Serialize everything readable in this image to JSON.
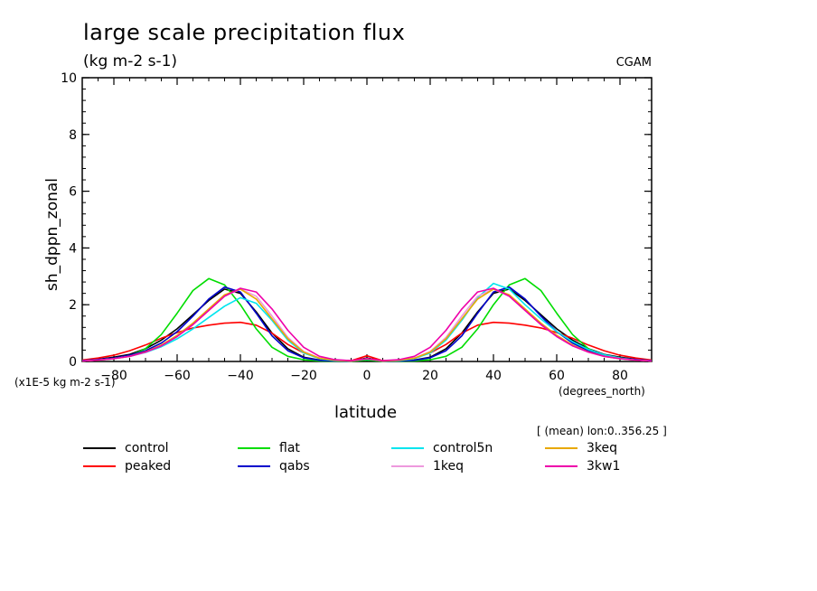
{
  "chart_data": {
    "type": "line",
    "title": "large scale precipitation flux",
    "units": "(kg m-2 s-1)",
    "source": "CGAM",
    "xlabel": "latitude",
    "xunits": "(degrees_north)",
    "ylabel": "sh_dppn_zonal",
    "scale_note": "(x1E-5 kg m-2 s-1)",
    "subset_note": "[ (mean) lon:0..356.25 ]",
    "xlim": [
      -90,
      90
    ],
    "ylim": [
      0,
      10
    ],
    "xticks": [
      -80,
      -60,
      -40,
      -20,
      0,
      20,
      40,
      60,
      80
    ],
    "yticks": [
      0,
      2,
      4,
      6,
      8,
      10
    ],
    "x": [
      -90,
      -85,
      -80,
      -75,
      -70,
      -65,
      -60,
      -55,
      -50,
      -45,
      -40,
      -35,
      -30,
      -25,
      -20,
      -15,
      -10,
      -5,
      0,
      5,
      10,
      15,
      20,
      25,
      30,
      35,
      40,
      45,
      50,
      55,
      60,
      65,
      70,
      75,
      80,
      85,
      90
    ],
    "series": [
      {
        "name": "control",
        "color": "#000000",
        "values": [
          0.03,
          0.08,
          0.15,
          0.25,
          0.45,
          0.75,
          1.15,
          1.65,
          2.15,
          2.55,
          2.4,
          1.75,
          1.0,
          0.45,
          0.15,
          0.05,
          0.02,
          0.02,
          0.12,
          0.02,
          0.02,
          0.05,
          0.15,
          0.45,
          1.0,
          1.75,
          2.4,
          2.55,
          2.15,
          1.65,
          1.15,
          0.75,
          0.45,
          0.25,
          0.15,
          0.08,
          0.03
        ]
      },
      {
        "name": "peaked",
        "color": "#ff0000",
        "values": [
          0.05,
          0.12,
          0.22,
          0.38,
          0.58,
          0.82,
          1.02,
          1.18,
          1.28,
          1.35,
          1.38,
          1.28,
          1.0,
          0.6,
          0.3,
          0.12,
          0.04,
          0.03,
          0.2,
          0.03,
          0.04,
          0.12,
          0.3,
          0.6,
          1.0,
          1.28,
          1.38,
          1.35,
          1.28,
          1.18,
          1.02,
          0.82,
          0.58,
          0.38,
          0.22,
          0.12,
          0.05
        ]
      },
      {
        "name": "flat",
        "color": "#00dd00",
        "values": [
          0.03,
          0.06,
          0.1,
          0.2,
          0.45,
          0.95,
          1.7,
          2.5,
          2.92,
          2.7,
          2.0,
          1.15,
          0.5,
          0.18,
          0.06,
          0.02,
          0.01,
          0.01,
          0.05,
          0.01,
          0.01,
          0.02,
          0.06,
          0.18,
          0.5,
          1.15,
          2.0,
          2.7,
          2.92,
          2.5,
          1.7,
          0.95,
          0.45,
          0.2,
          0.1,
          0.06,
          0.03
        ]
      },
      {
        "name": "qabs",
        "color": "#0000cc",
        "values": [
          0.03,
          0.07,
          0.12,
          0.22,
          0.38,
          0.65,
          1.05,
          1.6,
          2.2,
          2.62,
          2.45,
          1.7,
          0.9,
          0.38,
          0.13,
          0.04,
          0.02,
          0.02,
          0.1,
          0.02,
          0.02,
          0.04,
          0.13,
          0.38,
          0.9,
          1.7,
          2.45,
          2.62,
          2.2,
          1.6,
          1.05,
          0.65,
          0.38,
          0.22,
          0.12,
          0.07,
          0.03
        ]
      },
      {
        "name": "control5n",
        "color": "#00e5ee",
        "values": [
          0.02,
          0.05,
          0.1,
          0.18,
          0.32,
          0.52,
          0.8,
          1.15,
          1.55,
          1.95,
          2.25,
          2.05,
          1.45,
          0.75,
          0.3,
          0.1,
          0.03,
          0.02,
          0.08,
          0.02,
          0.03,
          0.1,
          0.3,
          0.75,
          1.45,
          2.25,
          2.75,
          2.55,
          2.0,
          1.5,
          1.05,
          0.7,
          0.42,
          0.24,
          0.12,
          0.05,
          0.02
        ]
      },
      {
        "name": "1keq",
        "color": "#ee99dd",
        "values": [
          0.02,
          0.05,
          0.1,
          0.18,
          0.33,
          0.55,
          0.88,
          1.3,
          1.8,
          2.3,
          2.55,
          2.3,
          1.6,
          0.85,
          0.35,
          0.12,
          0.04,
          0.02,
          0.1,
          0.02,
          0.04,
          0.12,
          0.35,
          0.85,
          1.6,
          2.3,
          2.55,
          2.3,
          1.8,
          1.3,
          0.88,
          0.55,
          0.33,
          0.18,
          0.1,
          0.05,
          0.02
        ]
      },
      {
        "name": "3keq",
        "color": "#e8a800",
        "values": [
          0.02,
          0.05,
          0.1,
          0.18,
          0.34,
          0.58,
          0.92,
          1.35,
          1.85,
          2.35,
          2.55,
          2.2,
          1.5,
          0.8,
          0.33,
          0.11,
          0.04,
          0.02,
          0.1,
          0.02,
          0.04,
          0.11,
          0.33,
          0.8,
          1.5,
          2.2,
          2.55,
          2.35,
          1.85,
          1.35,
          0.92,
          0.58,
          0.34,
          0.18,
          0.1,
          0.05,
          0.02
        ]
      },
      {
        "name": "3kw1",
        "color": "#ee00aa",
        "values": [
          0.02,
          0.05,
          0.1,
          0.18,
          0.33,
          0.55,
          0.88,
          1.3,
          1.8,
          2.3,
          2.58,
          2.45,
          1.85,
          1.1,
          0.5,
          0.18,
          0.06,
          0.03,
          0.1,
          0.03,
          0.06,
          0.18,
          0.5,
          1.1,
          1.85,
          2.45,
          2.58,
          2.3,
          1.8,
          1.3,
          0.88,
          0.55,
          0.33,
          0.18,
          0.1,
          0.05,
          0.02
        ]
      }
    ]
  }
}
